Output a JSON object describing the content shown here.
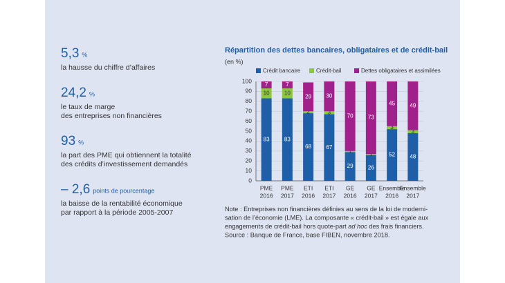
{
  "key_figures": [
    {
      "value": "5,3",
      "unit": "%",
      "lines": [
        "la hausse du chiffre d’affaires"
      ]
    },
    {
      "value": "24,2",
      "unit": "%",
      "lines": [
        "le taux de marge",
        "des entreprises non financières"
      ]
    },
    {
      "value": "93",
      "unit": "%",
      "lines": [
        "la part des PME qui obtiennent la totalité",
        "des crédits d’investissement demandés"
      ]
    },
    {
      "value": "– 2,6",
      "unit": "points de pourcentage",
      "lines": [
        "la baisse de la rentabilité économique",
        "par rapport à la période 2005-2007"
      ]
    }
  ],
  "chart_data": {
    "type": "stacked_bar",
    "title": "Répartition des dettes bancaires, obligataires et de crédit-bail",
    "subtitle": "(en %)",
    "categories": [
      [
        "PME",
        "2016"
      ],
      [
        "PME",
        "2017"
      ],
      [
        "ETI",
        "2016"
      ],
      [
        "ETI",
        "2017"
      ],
      [
        "GE",
        "2016"
      ],
      [
        "GE",
        "2017"
      ],
      [
        "Ensemble",
        "2016"
      ],
      [
        "Ensemble",
        "2017"
      ]
    ],
    "series": [
      {
        "name": "Crédit bancaire",
        "color": "#1f5fa8",
        "values": [
          83,
          83,
          68,
          67,
          29,
          26,
          52,
          48
        ]
      },
      {
        "name": "Crédit-bail",
        "color": "#8dc63f",
        "values": [
          10,
          10,
          2,
          3,
          1,
          1,
          3,
          3
        ]
      },
      {
        "name": "Dettes obligataires et assimilées",
        "color": "#a0218c",
        "values": [
          7,
          7,
          29,
          30,
          70,
          73,
          45,
          49
        ]
      }
    ],
    "ylim": [
      0,
      100
    ],
    "yticks": [
      0,
      10,
      20,
      30,
      40,
      50,
      60,
      70,
      80,
      90,
      100
    ],
    "grid": true
  },
  "note": [
    [
      "Note : Entreprises non financières définies au sens de la loi de moderni-"
    ],
    [
      "sation de l’économie (LME). La composante « crédit-bail » est égale aux"
    ],
    [
      "engagements de crédit-bail hors quote-part ",
      "ad hoc",
      " des frais financiers."
    ],
    [
      "Source : Banque de France, base FIBEN, novembre 2018."
    ]
  ]
}
